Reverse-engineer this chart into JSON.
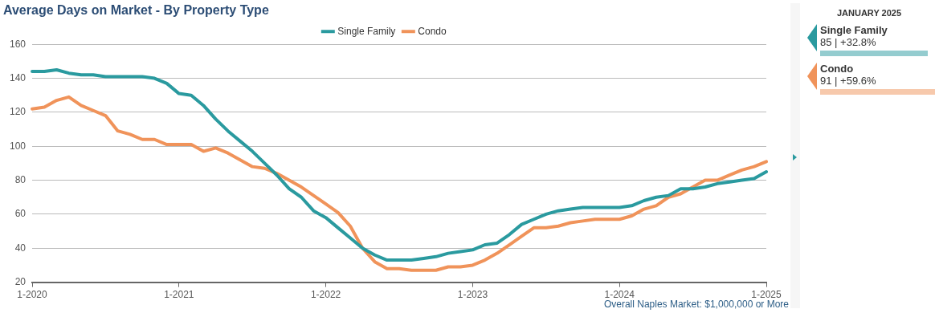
{
  "chart_data": [
    {
      "type": "line",
      "title": "Average Days on Market - By Property Type",
      "categories": [
        "1-2020",
        null,
        null,
        null,
        null,
        null,
        null,
        null,
        null,
        null,
        null,
        null,
        "1-2021",
        null,
        null,
        null,
        null,
        null,
        null,
        null,
        null,
        null,
        null,
        null,
        "1-2022",
        null,
        null,
        null,
        null,
        null,
        null,
        null,
        null,
        null,
        null,
        null,
        "1-2023",
        null,
        null,
        null,
        null,
        null,
        null,
        null,
        null,
        null,
        null,
        null,
        "1-2024",
        null,
        null,
        null,
        null,
        null,
        null,
        null,
        null,
        null,
        null,
        null,
        "1-2025"
      ],
      "series": [
        {
          "name": "Single Family",
          "color": "#2a9a9f",
          "values": [
            144,
            144,
            145,
            143,
            142,
            142,
            141,
            141,
            141,
            141,
            140,
            137,
            131,
            130,
            124,
            116,
            109,
            103,
            97,
            90,
            83,
            75,
            70,
            62,
            58,
            52,
            46,
            40,
            36,
            33,
            33,
            33,
            34,
            35,
            37,
            38,
            39,
            42,
            43,
            48,
            54,
            57,
            60,
            62,
            63,
            64,
            64,
            64,
            64,
            65,
            68,
            70,
            71,
            75,
            75,
            76,
            78,
            79,
            80,
            81,
            85
          ]
        },
        {
          "name": "Condo",
          "color": "#f0935a",
          "values": [
            122,
            123,
            127,
            129,
            124,
            121,
            118,
            109,
            107,
            104,
            104,
            101,
            101,
            101,
            97,
            99,
            96,
            92,
            88,
            87,
            84,
            80,
            76,
            71,
            66,
            61,
            53,
            40,
            32,
            28,
            28,
            27,
            27,
            27,
            29,
            29,
            30,
            33,
            37,
            42,
            47,
            52,
            52,
            53,
            55,
            56,
            57,
            57,
            57,
            59,
            63,
            65,
            70,
            72,
            76,
            80,
            80,
            83,
            86,
            88,
            91
          ]
        }
      ],
      "ylim": [
        20,
        160
      ],
      "yticks": [
        20,
        40,
        60,
        80,
        100,
        120,
        140,
        160
      ],
      "grid": "y",
      "legend": "top",
      "marker": "none",
      "line_style": "solid",
      "annotations": [
        "Overall Naples Market: $1,000,000 or More"
      ]
    },
    {
      "type": "other",
      "title": "JANUARY 2025",
      "annotations": [
        "Single Family",
        "85 | +32.8%",
        "Condo",
        "91 | +59.6%"
      ]
    }
  ]
}
